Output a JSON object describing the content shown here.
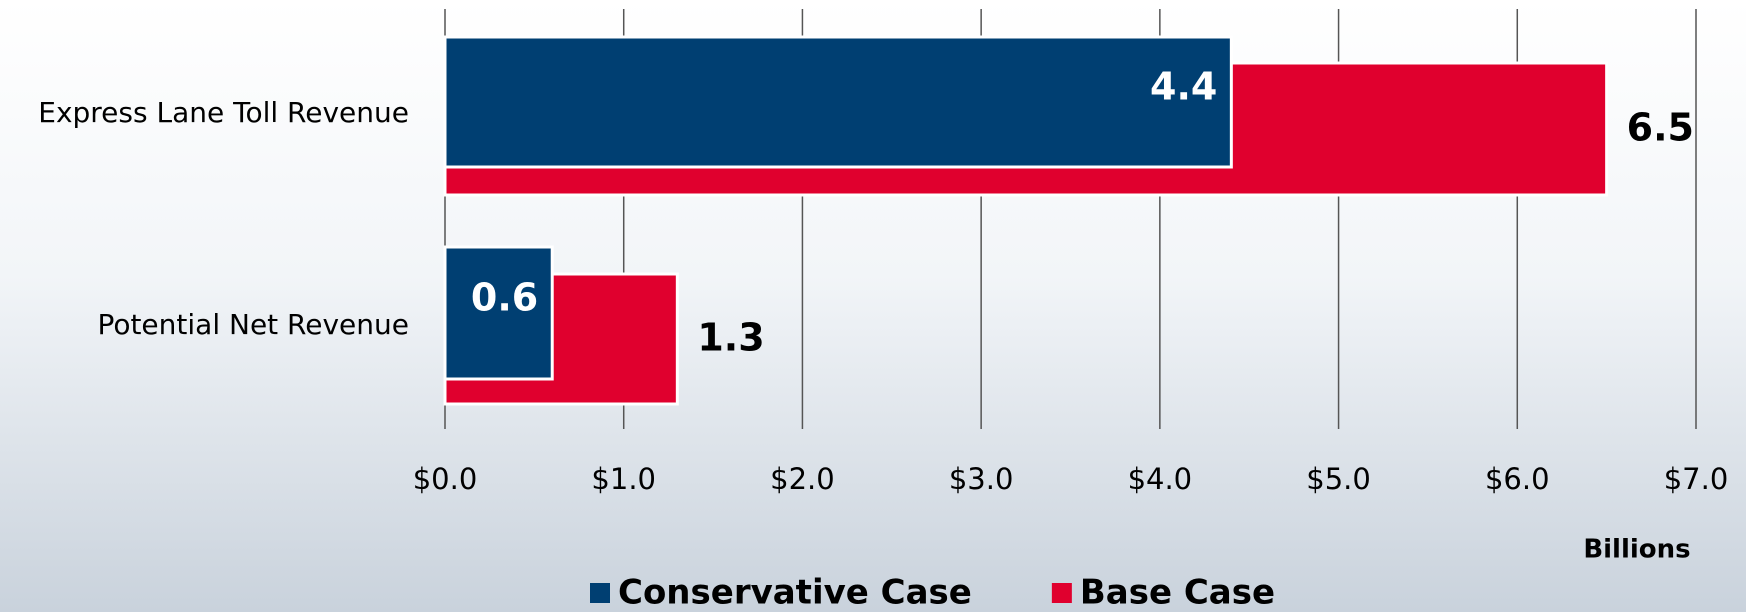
{
  "chart_data": {
    "type": "bar",
    "orientation": "horizontal",
    "categories": [
      "Express Lane Toll Revenue",
      "Potential Net Revenue"
    ],
    "series": [
      {
        "name": "Conservative Case",
        "color": "#003f72",
        "values": [
          4.4,
          0.6
        ]
      },
      {
        "name": "Base Case",
        "color": "#e0002e",
        "values": [
          6.5,
          1.3
        ]
      }
    ],
    "xlim": [
      0,
      7
    ],
    "xticks": [
      {
        "value": 0,
        "label": "$0.0"
      },
      {
        "value": 1,
        "label": "$1.0"
      },
      {
        "value": 2,
        "label": "$2.0"
      },
      {
        "value": 3,
        "label": "$3.0"
      },
      {
        "value": 4,
        "label": "$4.0"
      },
      {
        "value": 5,
        "label": "$5.0"
      },
      {
        "value": 6,
        "label": "$6.0"
      },
      {
        "value": 7,
        "label": "$7.0"
      }
    ],
    "x_label": "Billions",
    "grid": true,
    "legend": "bottom"
  }
}
